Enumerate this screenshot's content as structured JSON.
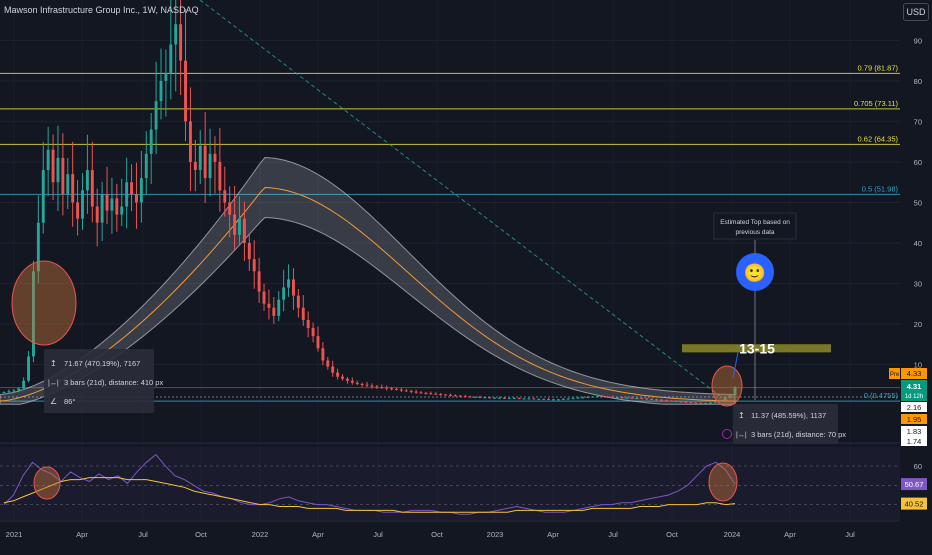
{
  "header": {
    "title": "Mawson Infrastructure Group Inc., 1W, NASDAQ",
    "currency_button": "USD"
  },
  "colors": {
    "background": "#131722",
    "up": "#26a69a",
    "down": "#ef5350",
    "fib": "#e8e23a",
    "fib_cyan": "#2fa6c9",
    "ma": "#f29a38",
    "band": "#bfc3cb",
    "rsi": "#7e57c2",
    "rsi_ma": "#f5c23b",
    "trend": "#26a69a",
    "price_label": "#089981",
    "pre_label": "#ff9800",
    "smiley": "#2962ff",
    "target_box": "#8c8a25"
  },
  "chart_data": [
    {
      "type": "candlestick",
      "title": "Mawson Infrastructure Group Inc., 1W, NASDAQ",
      "x_ticks": [
        "2021",
        "Apr",
        "Jul",
        "Oct",
        "2022",
        "Apr",
        "Jul",
        "Oct",
        "2023",
        "Apr",
        "Jul",
        "Oct",
        "2024",
        "Apr",
        "Jul"
      ],
      "y_ticks": [
        90,
        80,
        70,
        60,
        50,
        40,
        30,
        20,
        10
      ],
      "ylim": [
        0,
        98
      ],
      "grid": true,
      "fib_levels": [
        {
          "ratio": "0.79",
          "label": "0.79 (81.87)",
          "value": 81.87
        },
        {
          "ratio": "0.705",
          "label": "0.705 (73.11)",
          "value": 73.11
        },
        {
          "ratio": "0.62",
          "label": "0.62 (64.35)",
          "value": 64.35
        },
        {
          "ratio": "0.5",
          "label": "0.5 (51.98)",
          "value": 51.98
        },
        {
          "ratio": "0",
          "label": "0 (0.4755)",
          "value": 0.4755
        }
      ],
      "price_labels": [
        {
          "label": "Pre",
          "value": "4.33"
        },
        {
          "label": "",
          "value": "4.31",
          "sub": "1d 12h"
        },
        {
          "label": "",
          "value": "2.16"
        },
        {
          "label": "",
          "value": "1.95"
        },
        {
          "label": "",
          "value": "1.83"
        },
        {
          "label": "",
          "value": "1.74"
        }
      ],
      "measurements": [
        {
          "price": "71.67 (470.19%), 7167",
          "range": "3 bars (21d), distance: 410 px",
          "angle": "86°"
        },
        {
          "price": "11.37 (485.59%), 1137",
          "range": "3 bars (21d), distance: 70 px"
        }
      ],
      "annotations": {
        "estimate_text": [
          "Estimated Top based on",
          "previous data"
        ],
        "target_label": "13-15",
        "smiley": "🙂",
        "target_range": [
          13,
          15
        ]
      },
      "candles_close": [
        3.2,
        3.4,
        3.6,
        4.1,
        6,
        12,
        33,
        45,
        58,
        63,
        55,
        61,
        52,
        57,
        50,
        46,
        53,
        58,
        49,
        45,
        52,
        48,
        51,
        47,
        49,
        55,
        52,
        50,
        56,
        62,
        68,
        75,
        80,
        82,
        89,
        94,
        85,
        70,
        60,
        58,
        64,
        56,
        62,
        60,
        53,
        50,
        47,
        42,
        46,
        40,
        36,
        33,
        28,
        25,
        24,
        22,
        26,
        29,
        31,
        27,
        24,
        21,
        19,
        17,
        14,
        11,
        9.5,
        8,
        7,
        6.5,
        6,
        5.5,
        5.2,
        5,
        4.8,
        4.6,
        4.4,
        4.3,
        4.1,
        4,
        3.8,
        3.6,
        3.5,
        3.3,
        3.1,
        3,
        2.9,
        2.8,
        2.7,
        2.6,
        2.5,
        2.4,
        2.3,
        2.2,
        2.1,
        2,
        2,
        1.9,
        1.9,
        1.8,
        1.8,
        1.8,
        1.7,
        1.7,
        1.7,
        1.6,
        1.6,
        1.6,
        1.5,
        1.5,
        1.5,
        1.4,
        1.4,
        1.4,
        1.5,
        1.6,
        1.7,
        1.8,
        1.9,
        2,
        2.1,
        2.2,
        2.1,
        2,
        1.9,
        1.9,
        1.8,
        1.8,
        1.7,
        1.7,
        1.6,
        1.5,
        1.4,
        1.3,
        1.2,
        1.1,
        1,
        0.9,
        0.8,
        0.7,
        0.6,
        0.55,
        0.5,
        0.5,
        0.6,
        0.8,
        1.2,
        1.8,
        2.4,
        4.31
      ]
    },
    {
      "type": "line",
      "title": "RSI",
      "y_ticks": [
        60,
        40
      ],
      "series": [
        {
          "name": "",
          "last": "50.67",
          "values": [
            40,
            45,
            55,
            62,
            58,
            56,
            52,
            57,
            54,
            52,
            56,
            53,
            55,
            51,
            57,
            62,
            66,
            60,
            55,
            53,
            50,
            47,
            46,
            44,
            43,
            41,
            40,
            40,
            41,
            43,
            44,
            42,
            41,
            40,
            40,
            39,
            38,
            37,
            37,
            37,
            36,
            36,
            36,
            37,
            37,
            37,
            36,
            36,
            35,
            35,
            36,
            36,
            37,
            38,
            39,
            38,
            37,
            36,
            36,
            36,
            37,
            38,
            39,
            40,
            40,
            41,
            41,
            42,
            43,
            44,
            45,
            47,
            50,
            55,
            60,
            62,
            58,
            50.67
          ]
        },
        {
          "name": "",
          "last": "40.52",
          "values": [
            41,
            42,
            44,
            46,
            48,
            50,
            52,
            53,
            53,
            54,
            54,
            54,
            54,
            53,
            53,
            53,
            52,
            51,
            50,
            49,
            47,
            46,
            45,
            44,
            43,
            42,
            41,
            40,
            40,
            39,
            39,
            39,
            38,
            38,
            38,
            38,
            37,
            37,
            37,
            37,
            37,
            37,
            36,
            36,
            36,
            36,
            36,
            36,
            36,
            36,
            36,
            36,
            36,
            36,
            37,
            37,
            37,
            37,
            37,
            37,
            37,
            37,
            38,
            38,
            38,
            38,
            38,
            39,
            39,
            39,
            40,
            40,
            40,
            40,
            41,
            41,
            40,
            40.52
          ]
        }
      ]
    }
  ]
}
